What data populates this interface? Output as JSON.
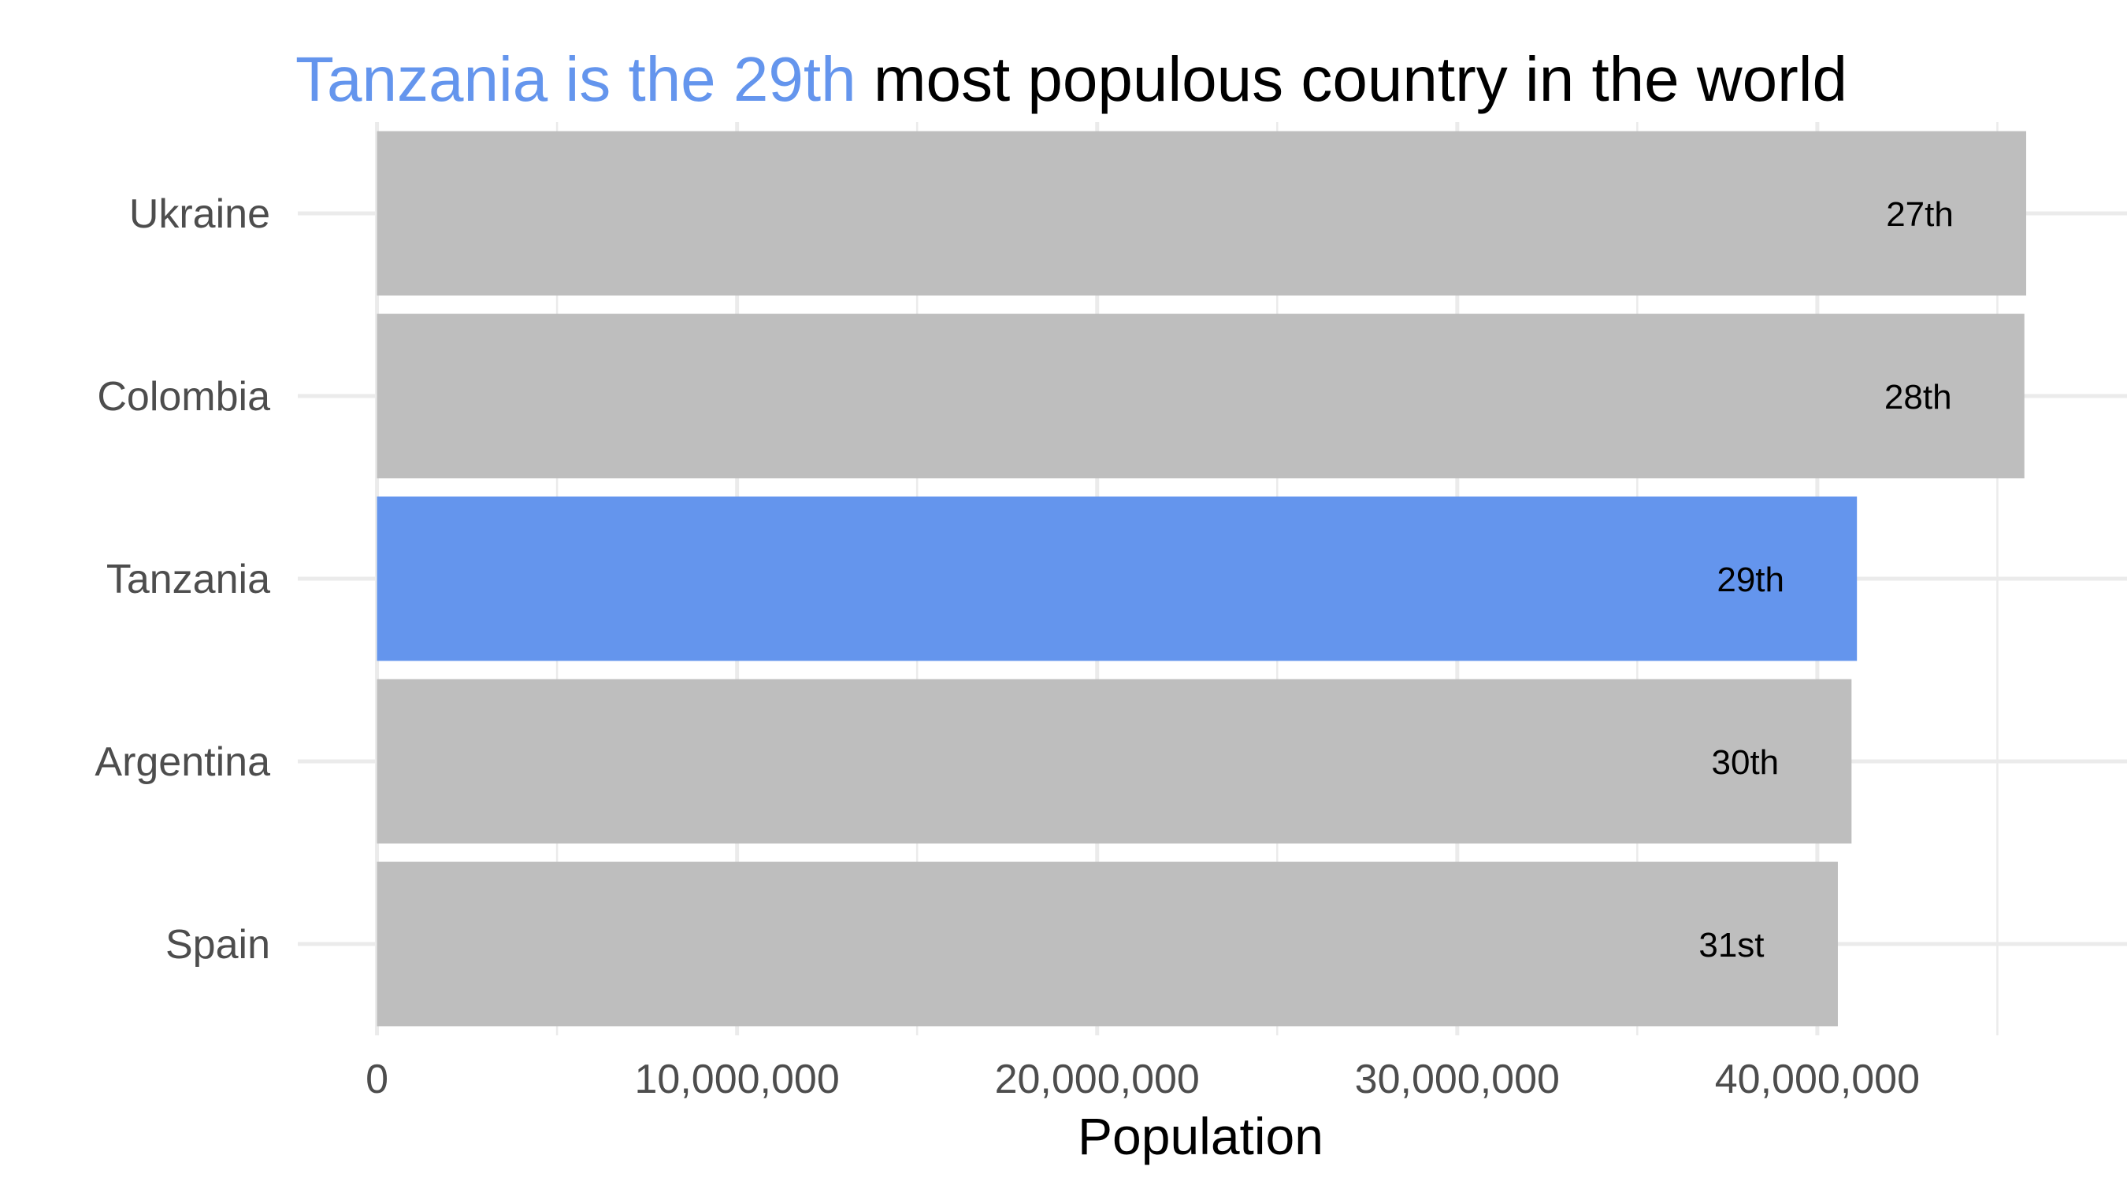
{
  "title": {
    "highlight": "Tanzania is the 29th",
    "rest": " most populous country in the world"
  },
  "chart_data": {
    "type": "bar",
    "orientation": "horizontal",
    "categories": [
      "Ukraine",
      "Colombia",
      "Tanzania",
      "Argentina",
      "Spain"
    ],
    "values": [
      45800000,
      45750000,
      41100000,
      40950000,
      40570000
    ],
    "bar_labels": [
      "27th",
      "28th",
      "29th",
      "30th",
      "31st"
    ],
    "highlight_category": "Tanzania",
    "xlabel": "Population",
    "ylabel": "",
    "xlim": [
      -2200000,
      48600000
    ],
    "x_ticks": [
      0,
      10000000,
      20000000,
      30000000,
      40000000
    ],
    "x_tick_labels": [
      "0",
      "10,000,000",
      "20,000,000",
      "30,000,000",
      "40,000,000"
    ],
    "grid": true,
    "colors": {
      "highlight": "#6495ED",
      "default": "#BEBEBE",
      "grid": "#EBEBEB"
    }
  }
}
